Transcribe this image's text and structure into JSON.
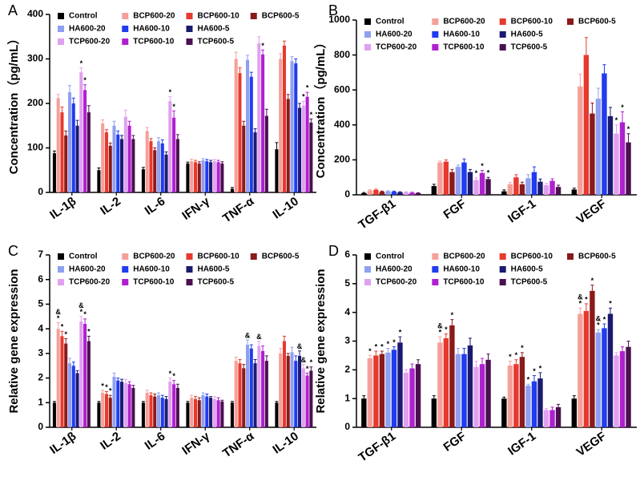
{
  "chart_data": [
    {
      "type": "bar",
      "panel": "A",
      "ylabel": "Concentration（pg/mL）",
      "categories": [
        "IL-1β",
        "IL-2",
        "IL-6",
        "IFN-γ",
        "TNF-α",
        "IL-10"
      ],
      "ylim": [
        0,
        400
      ],
      "yticks": [
        0,
        100,
        200,
        300,
        400
      ],
      "series": [
        {
          "name": "Control",
          "color": "#000000",
          "values": [
            88,
            50,
            52,
            65,
            8,
            97
          ],
          "errors": [
            5,
            5,
            4,
            3,
            3,
            15
          ]
        },
        {
          "name": "BCP600-20",
          "color": "#f4a09a",
          "values": [
            212,
            155,
            138,
            70,
            300,
            300
          ],
          "errors": [
            8,
            8,
            8,
            5,
            15,
            12
          ]
        },
        {
          "name": "BCP600-10",
          "color": "#e8392e",
          "values": [
            180,
            135,
            115,
            68,
            268,
            330
          ],
          "errors": [
            12,
            6,
            6,
            4,
            12,
            10
          ]
        },
        {
          "name": "BCP600-5",
          "color": "#8b1a1a",
          "values": [
            128,
            105,
            95,
            65,
            150,
            210
          ],
          "errors": [
            10,
            6,
            5,
            4,
            10,
            10
          ]
        },
        {
          "name": "HA600-20",
          "color": "#8fa0f0",
          "values": [
            225,
            150,
            115,
            72,
            298,
            295
          ],
          "errors": [
            15,
            10,
            8,
            4,
            10,
            10
          ]
        },
        {
          "name": "HA600-10",
          "color": "#1f3cf0",
          "values": [
            200,
            130,
            110,
            70,
            260,
            290
          ],
          "errors": [
            12,
            8,
            8,
            4,
            10,
            10
          ]
        },
        {
          "name": "HA600-5",
          "color": "#1a1a70",
          "values": [
            150,
            120,
            85,
            68,
            135,
            190
          ],
          "errors": [
            12,
            8,
            6,
            4,
            8,
            10
          ]
        },
        {
          "name": "TCP600-20",
          "color": "#e0a0f0",
          "values": [
            270,
            170,
            205,
            70,
            335,
            195
          ],
          "errors": [
            10,
            15,
            10,
            4,
            15,
            10
          ],
          "significance": [
            [
              "*"
            ],
            null,
            [
              "*"
            ],
            null,
            null,
            [
              "*"
            ]
          ]
        },
        {
          "name": "TCP600-10",
          "color": "#b020d0",
          "values": [
            230,
            150,
            168,
            68,
            310,
            215
          ],
          "errors": [
            12,
            10,
            15,
            4,
            10,
            10
          ],
          "significance": [
            [
              "*"
            ],
            null,
            [
              "*"
            ],
            null,
            [
              "*"
            ],
            [
              "*"
            ]
          ]
        },
        {
          "name": "TCP600-5",
          "color": "#4a1050",
          "values": [
            180,
            120,
            120,
            65,
            172,
            157
          ],
          "errors": [
            15,
            8,
            10,
            4,
            15,
            8
          ],
          "significance": [
            null,
            null,
            null,
            null,
            null,
            [
              "*"
            ]
          ]
        }
      ]
    },
    {
      "type": "bar",
      "panel": "B",
      "ylabel": "Concentration（pg/mL）",
      "categories": [
        "TGF-β1",
        "FGF",
        "IGF-1",
        "VEGF"
      ],
      "ylim": [
        0,
        1000
      ],
      "yticks": [
        0,
        200,
        400,
        600,
        800,
        1000
      ],
      "series": [
        {
          "name": "Control",
          "color": "#000000",
          "values": [
            10,
            50,
            20,
            30
          ],
          "errors": [
            3,
            10,
            8,
            8
          ]
        },
        {
          "name": "BCP600-20",
          "color": "#f4a09a",
          "values": [
            25,
            185,
            60,
            620
          ],
          "errors": [
            4,
            8,
            10,
            70
          ]
        },
        {
          "name": "BCP600-10",
          "color": "#e8392e",
          "values": [
            28,
            190,
            100,
            800
          ],
          "errors": [
            4,
            10,
            15,
            100
          ]
        },
        {
          "name": "BCP600-5",
          "color": "#8b1a1a",
          "values": [
            18,
            130,
            60,
            465
          ],
          "errors": [
            3,
            15,
            12,
            60
          ]
        },
        {
          "name": "HA600-20",
          "color": "#8fa0f0",
          "values": [
            20,
            160,
            95,
            550
          ],
          "errors": [
            3,
            10,
            20,
            60
          ]
        },
        {
          "name": "HA600-10",
          "color": "#1f3cf0",
          "values": [
            18,
            185,
            130,
            695
          ],
          "errors": [
            3,
            20,
            30,
            50
          ]
        },
        {
          "name": "HA600-5",
          "color": "#1a1a70",
          "values": [
            15,
            130,
            75,
            450
          ],
          "errors": [
            3,
            15,
            15,
            50
          ]
        },
        {
          "name": "TCP600-20",
          "color": "#e0a0f0",
          "values": [
            15,
            85,
            55,
            350
          ],
          "errors": [
            3,
            12,
            10,
            50
          ],
          "significance": [
            null,
            [
              "*"
            ],
            null,
            [
              "*"
            ]
          ]
        },
        {
          "name": "TCP600-10",
          "color": "#b020d0",
          "values": [
            12,
            125,
            80,
            415
          ],
          "errors": [
            3,
            15,
            12,
            60
          ],
          "significance": [
            null,
            [
              "*"
            ],
            null,
            [
              "*"
            ]
          ]
        },
        {
          "name": "TCP600-5",
          "color": "#4a1050",
          "values": [
            10,
            90,
            45,
            300
          ],
          "errors": [
            2,
            10,
            10,
            50
          ],
          "significance": [
            null,
            [
              "*"
            ],
            null,
            [
              "*"
            ]
          ]
        }
      ]
    },
    {
      "type": "bar",
      "panel": "C",
      "ylabel": "Relative gene expression",
      "categories": [
        "IL-1β",
        "IL-2",
        "IL-6",
        "IFN-γ",
        "TNF-α",
        "IL-10"
      ],
      "ylim": [
        0,
        7
      ],
      "yticks": [
        0,
        1,
        2,
        3,
        4,
        5,
        6,
        7
      ],
      "series": [
        {
          "name": "Control",
          "color": "#000000",
          "values": [
            1,
            1,
            1,
            1,
            1,
            1
          ],
          "errors": [
            0.05,
            0.05,
            0.05,
            0.05,
            0.05,
            0.05
          ]
        },
        {
          "name": "BCP600-20",
          "color": "#f4a09a",
          "values": [
            4.0,
            1.4,
            1.4,
            1.2,
            2.7,
            3.0
          ],
          "errors": [
            0.25,
            0.1,
            0.1,
            0.1,
            0.15,
            0.2
          ],
          "significance": [
            [
              "&",
              "*"
            ],
            [
              "*"
            ],
            null,
            null,
            null,
            null
          ]
        },
        {
          "name": "BCP600-10",
          "color": "#e8392e",
          "values": [
            3.7,
            1.35,
            1.3,
            1.15,
            2.6,
            3.5
          ],
          "errors": [
            0.2,
            0.1,
            0.1,
            0.1,
            0.15,
            0.2
          ],
          "significance": [
            [
              "*"
            ],
            [
              "*"
            ],
            null,
            null,
            null,
            null
          ]
        },
        {
          "name": "BCP600-5",
          "color": "#8b1a1a",
          "values": [
            3.4,
            1.2,
            1.25,
            1.1,
            2.4,
            2.9
          ],
          "errors": [
            0.2,
            0.1,
            0.1,
            0.1,
            0.15,
            0.1
          ],
          "significance": [
            [
              "*"
            ],
            [
              "*"
            ],
            null,
            null,
            null,
            null
          ]
        },
        {
          "name": "HA600-20",
          "color": "#8fa0f0",
          "values": [
            2.6,
            2.05,
            1.3,
            1.3,
            3.35,
            3.05
          ],
          "errors": [
            0.2,
            0.15,
            0.1,
            0.1,
            0.2,
            0.2
          ],
          "significance": [
            null,
            null,
            null,
            null,
            [
              "&"
            ],
            null
          ]
        },
        {
          "name": "HA600-10",
          "color": "#1f3cf0",
          "values": [
            2.5,
            1.9,
            1.2,
            1.25,
            3.2,
            2.7
          ],
          "errors": [
            0.15,
            0.1,
            0.1,
            0.1,
            0.15,
            0.2
          ]
        },
        {
          "name": "HA600-5",
          "color": "#1a1a70",
          "values": [
            2.2,
            1.85,
            1.15,
            1.2,
            2.6,
            2.9
          ],
          "errors": [
            0.1,
            0.1,
            0.1,
            0.05,
            0.15,
            0.2
          ],
          "significance": [
            null,
            null,
            null,
            null,
            null,
            [
              "&"
            ]
          ]
        },
        {
          "name": "TCP600-20",
          "color": "#e0a0f0",
          "values": [
            4.3,
            1.8,
            1.85,
            1.15,
            3.3,
            2.4
          ],
          "errors": [
            0.2,
            0.15,
            0.15,
            0.1,
            0.2,
            0.15
          ],
          "significance": [
            [
              "&",
              "*"
            ],
            null,
            [
              "*"
            ],
            null,
            [
              "&"
            ],
            [
              "&"
            ]
          ]
        },
        {
          "name": "TCP600-10",
          "color": "#b020d0",
          "values": [
            4.2,
            1.75,
            1.75,
            1.1,
            3.1,
            2.1
          ],
          "errors": [
            0.2,
            0.1,
            0.15,
            0.1,
            0.2,
            0.1
          ],
          "significance": [
            [
              "*"
            ],
            null,
            [
              "*"
            ],
            null,
            null,
            [
              "*"
            ]
          ]
        },
        {
          "name": "TCP600-5",
          "color": "#4a1050",
          "values": [
            3.5,
            1.6,
            1.6,
            1.05,
            2.7,
            2.3
          ],
          "errors": [
            0.2,
            0.1,
            0.15,
            0.05,
            0.2,
            0.15
          ],
          "significance": [
            [
              "*"
            ],
            null,
            null,
            null,
            null,
            [
              "*"
            ]
          ]
        }
      ]
    },
    {
      "type": "bar",
      "panel": "D",
      "ylabel": "Relative gene expression",
      "categories": [
        "TGF-β1",
        "FGF",
        "IGF-1",
        "VEGF"
      ],
      "ylim": [
        0,
        6
      ],
      "yticks": [
        0,
        1,
        2,
        3,
        4,
        5,
        6
      ],
      "series": [
        {
          "name": "Control",
          "color": "#000000",
          "values": [
            1,
            1,
            1,
            1
          ],
          "errors": [
            0.1,
            0.1,
            0.05,
            0.1
          ]
        },
        {
          "name": "BCP600-20",
          "color": "#f4a09a",
          "values": [
            2.4,
            2.95,
            2.15,
            3.95
          ],
          "errors": [
            0.1,
            0.2,
            0.15,
            0.2
          ],
          "significance": [
            [
              "*"
            ],
            [
              "&",
              "*"
            ],
            [
              "*"
            ],
            [
              "&",
              "*"
            ]
          ]
        },
        {
          "name": "BCP600-10",
          "color": "#e8392e",
          "values": [
            2.5,
            3.1,
            2.2,
            4.05
          ],
          "errors": [
            0.15,
            0.15,
            0.15,
            0.25
          ],
          "significance": [
            [
              "*"
            ],
            [
              "*"
            ],
            [
              "*"
            ],
            [
              "*"
            ]
          ]
        },
        {
          "name": "BCP600-5",
          "color": "#8b1a1a",
          "values": [
            2.55,
            3.55,
            2.45,
            4.75
          ],
          "errors": [
            0.1,
            0.2,
            0.15,
            0.2
          ],
          "significance": [
            [
              "*"
            ],
            [
              "*"
            ],
            [
              "*"
            ],
            [
              "*"
            ]
          ]
        },
        {
          "name": "HA600-20",
          "color": "#8fa0f0",
          "values": [
            2.6,
            2.55,
            1.45,
            3.3
          ],
          "errors": [
            0.15,
            0.2,
            0.05,
            0.1
          ],
          "significance": [
            [
              "*"
            ],
            null,
            [
              "*"
            ],
            [
              "&",
              "*"
            ]
          ]
        },
        {
          "name": "HA600-10",
          "color": "#1f3cf0",
          "values": [
            2.7,
            2.55,
            1.6,
            3.45
          ],
          "errors": [
            0.1,
            0.2,
            0.2,
            0.15
          ],
          "significance": [
            [
              "*"
            ],
            null,
            [
              "*"
            ],
            [
              "*"
            ]
          ]
        },
        {
          "name": "HA600-5",
          "color": "#1a1a70",
          "values": [
            2.95,
            2.85,
            1.7,
            3.95
          ],
          "errors": [
            0.2,
            0.25,
            0.2,
            0.2
          ],
          "significance": [
            [
              "*"
            ],
            null,
            [
              "*"
            ],
            [
              "*"
            ]
          ]
        },
        {
          "name": "TCP600-20",
          "color": "#e0a0f0",
          "values": [
            1.9,
            2.1,
            0.6,
            2.5
          ],
          "errors": [
            0.1,
            0.2,
            0.05,
            0.1
          ]
        },
        {
          "name": "TCP600-10",
          "color": "#b020d0",
          "values": [
            2.05,
            2.2,
            0.6,
            2.65
          ],
          "errors": [
            0.15,
            0.2,
            0.1,
            0.15
          ]
        },
        {
          "name": "TCP600-5",
          "color": "#4a1050",
          "values": [
            2.2,
            2.35,
            0.7,
            2.8
          ],
          "errors": [
            0.15,
            0.2,
            0.1,
            0.2
          ]
        }
      ]
    }
  ]
}
